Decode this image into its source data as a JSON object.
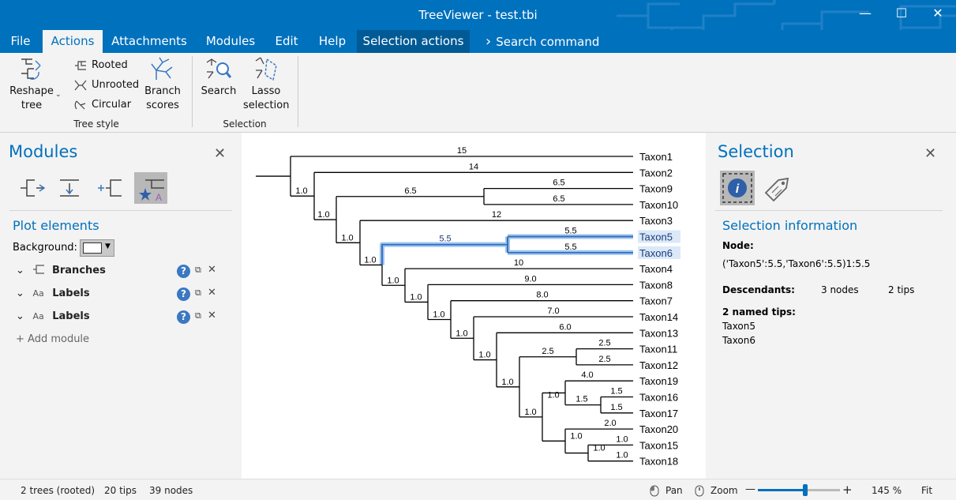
{
  "window": {
    "title": "TreeViewer - test.tbi",
    "minimize": "—",
    "maximize": "☐",
    "close": "✕"
  },
  "menu": {
    "file": "File",
    "actions": "Actions",
    "attachments": "Attachments",
    "modules": "Modules",
    "edit": "Edit",
    "help": "Help",
    "selection_actions": "Selection actions",
    "search_command": "Search command",
    "search_chevron": "›"
  },
  "ribbon": {
    "reshape_line1": "Reshape",
    "reshape_line2": "tree",
    "rooted": "Rooted",
    "unrooted": "Unrooted",
    "circular": "Circular",
    "branch_line1": "Branch",
    "branch_line2": "scores",
    "tree_style": "Tree style",
    "search": "Search",
    "lasso_line1": "Lasso",
    "lasso_line2": "selection",
    "selection": "Selection"
  },
  "left": {
    "title": "Modules",
    "plot_elements": "Plot elements",
    "background_label": "Background:",
    "modules": [
      {
        "icon": "branches",
        "label": "Branches"
      },
      {
        "icon": "labels",
        "label": "Labels"
      },
      {
        "icon": "labels",
        "label": "Labels"
      }
    ],
    "add_module": "+ Add module",
    "labels_glyph": "Aa"
  },
  "right": {
    "title": "Selection",
    "section": "Selection information",
    "node_label": "Node:",
    "node_value": "('Taxon5':5.5,'Taxon6':5.5)1:5.5",
    "descendants_label": "Descendants:",
    "descendants_nodes": "3 nodes",
    "descendants_tips": "2 tips",
    "named_tips_label": "2 named tips:",
    "named_tips": [
      "Taxon5",
      "Taxon6"
    ]
  },
  "status": {
    "trees": "2 trees (rooted)",
    "tips": "20 tips",
    "nodes": "39 nodes",
    "pan": "Pan",
    "zoom": "Zoom",
    "minus": "—",
    "plus": "+",
    "zoom_level": "145 %",
    "fit": "Fit",
    "zoom_fraction": 0.58
  },
  "tree": {
    "taxa": [
      "Taxon1",
      "Taxon2",
      "Taxon9",
      "Taxon10",
      "Taxon3",
      "Taxon5",
      "Taxon6",
      "Taxon4",
      "Taxon8",
      "Taxon7",
      "Taxon14",
      "Taxon13",
      "Taxon11",
      "Taxon12",
      "Taxon19",
      "Taxon16",
      "Taxon17",
      "Taxon20",
      "Taxon15",
      "Taxon18"
    ],
    "selected_taxa": [
      "Taxon5",
      "Taxon6"
    ],
    "branch_labels": [
      "15",
      "14",
      "6.5",
      "6.5",
      "6.5",
      "12",
      "5.5",
      "5.5",
      "5.5",
      "10",
      "9.0",
      "8.0",
      "7.0",
      "6.0",
      "2.5",
      "2.5",
      "2.5",
      "4.0",
      "1.5",
      "1.5",
      "1.5",
      "2.0",
      "1.0",
      "1.0"
    ],
    "support_labels": [
      "1.0",
      "1.0",
      "1.0",
      "1.0",
      "1.0",
      "1.0",
      "1.0",
      "1.0",
      "1.0",
      "1.0",
      "1.0",
      "1.0",
      "1.0",
      "1.0"
    ]
  }
}
